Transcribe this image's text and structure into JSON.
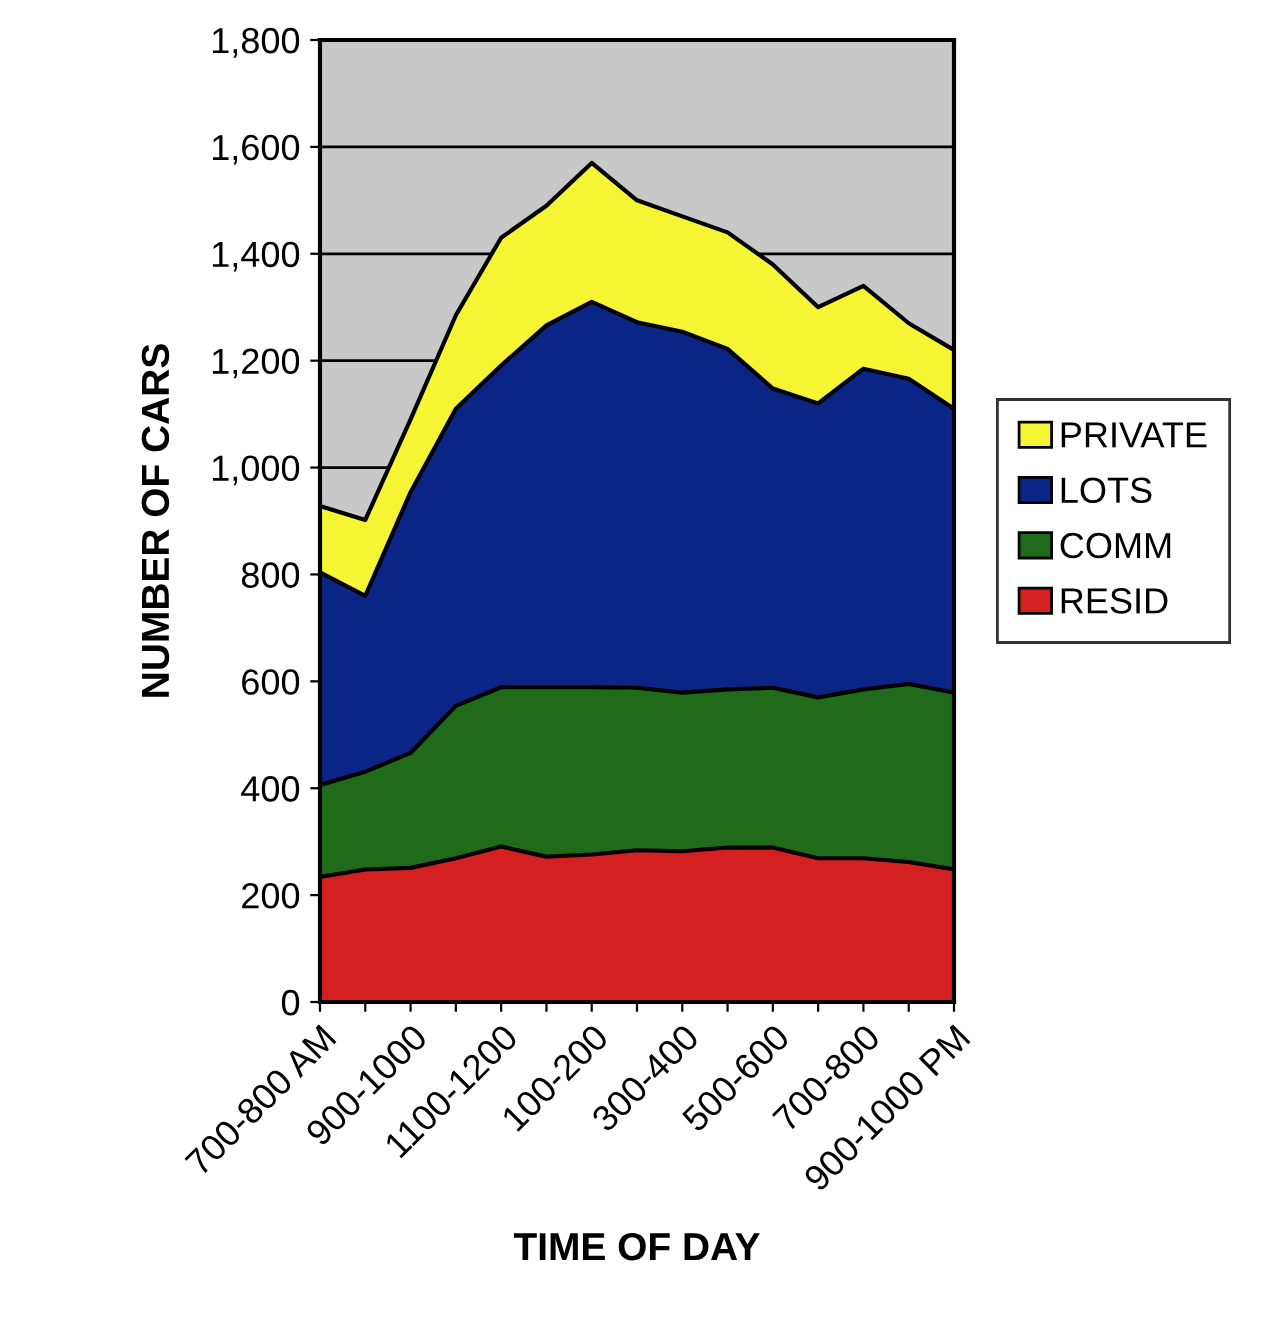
{
  "chart_data": {
    "type": "area",
    "stacked": true,
    "xlabel": "TIME OF DAY",
    "ylabel": "NUMBER OF CARS",
    "categories": [
      "700-800 AM",
      null,
      "900-1000",
      null,
      "1100-1200",
      null,
      "100-200",
      null,
      "300-400",
      null,
      "500-600",
      null,
      "700-800",
      null,
      "900-1000 PM"
    ],
    "series": [
      {
        "name": "RESID",
        "color": "#d42020",
        "values": [
          234,
          248,
          251,
          269,
          291,
          272,
          276,
          284,
          282,
          289,
          289,
          269,
          269,
          262,
          248
        ]
      },
      {
        "name": "COMM",
        "color": "#1f6b1a",
        "values": [
          172,
          183,
          215,
          285,
          298,
          317,
          313,
          304,
          297,
          296,
          299,
          301,
          316,
          333,
          331
        ]
      },
      {
        "name": "LOTS",
        "color": "#0a2585",
        "values": [
          398,
          329,
          488,
          556,
          602,
          677,
          721,
          684,
          675,
          637,
          560,
          550,
          600,
          571,
          531
        ]
      },
      {
        "name": "PRIVATE",
        "color": "#f5f534",
        "values": [
          124,
          142,
          136,
          175,
          239,
          224,
          260,
          228,
          216,
          218,
          232,
          180,
          155,
          104,
          110
        ]
      }
    ],
    "ylim": [
      0,
      1800
    ],
    "yticks": [
      {
        "value": 0,
        "label": "0"
      },
      {
        "value": 200,
        "label": "200"
      },
      {
        "value": 400,
        "label": "400"
      },
      {
        "value": 600,
        "label": "600"
      },
      {
        "value": 800,
        "label": "800"
      },
      {
        "value": 1000,
        "label": "1,000"
      },
      {
        "value": 1200,
        "label": "1,200"
      },
      {
        "value": 1400,
        "label": "1,400"
      },
      {
        "value": 1600,
        "label": "1,600"
      },
      {
        "value": 1800,
        "label": "1,800"
      }
    ],
    "grid": "y",
    "legend": "right"
  }
}
